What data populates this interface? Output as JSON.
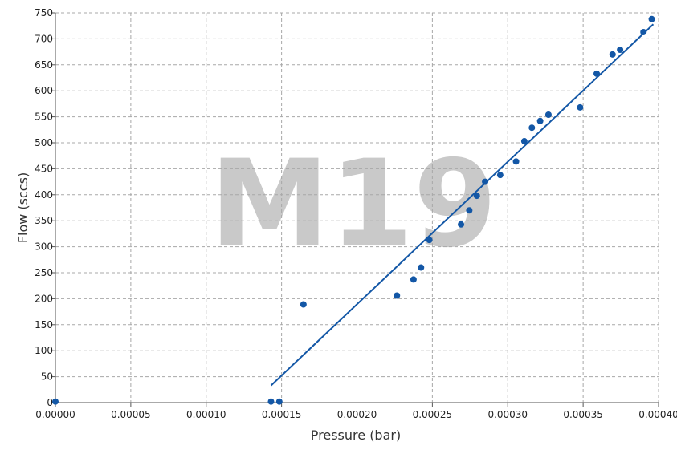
{
  "chart_data": {
    "type": "scatter",
    "xlabel": "Pressure (bar)",
    "ylabel": "Flow (sccs)",
    "xlim": [
      0,
      0.0004
    ],
    "ylim": [
      0,
      750
    ],
    "x_tick_labels": [
      "0.00000",
      "0.00005",
      "0.00010",
      "0.00015",
      "0.00020",
      "0.00025",
      "0.00030",
      "0.00035",
      "0.00040"
    ],
    "x_ticks": [
      0,
      5e-05,
      0.0001,
      0.00015,
      0.0002,
      0.00025,
      0.0003,
      0.00035,
      0.0004
    ],
    "y_ticks": [
      0,
      50,
      100,
      150,
      200,
      250,
      300,
      350,
      400,
      450,
      500,
      550,
      600,
      650,
      700,
      750
    ],
    "y_tick_labels": [
      "0",
      "50",
      "100",
      "150",
      "200",
      "250",
      "300",
      "350",
      "400",
      "450",
      "500",
      "550",
      "600",
      "650",
      "700",
      "750"
    ],
    "grid": true,
    "watermark": "M19",
    "colors": {
      "points": "#1357a6",
      "line": "#1357a6",
      "watermark": "#c9c9c9"
    },
    "points": [
      {
        "x": 0.0,
        "y": 2
      },
      {
        "x": 0.000143,
        "y": 2
      },
      {
        "x": 0.0001485,
        "y": 2
      },
      {
        "x": 0.0001645,
        "y": 189
      },
      {
        "x": 0.0002265,
        "y": 206
      },
      {
        "x": 0.0002375,
        "y": 237
      },
      {
        "x": 0.0002425,
        "y": 260
      },
      {
        "x": 0.000248,
        "y": 313
      },
      {
        "x": 0.000269,
        "y": 343
      },
      {
        "x": 0.0002745,
        "y": 370
      },
      {
        "x": 0.0002795,
        "y": 398
      },
      {
        "x": 0.000285,
        "y": 425
      },
      {
        "x": 0.000295,
        "y": 438
      },
      {
        "x": 0.0003055,
        "y": 464
      },
      {
        "x": 0.000311,
        "y": 503
      },
      {
        "x": 0.000316,
        "y": 529
      },
      {
        "x": 0.0003215,
        "y": 542
      },
      {
        "x": 0.000327,
        "y": 554
      },
      {
        "x": 0.000348,
        "y": 568
      },
      {
        "x": 0.000359,
        "y": 633
      },
      {
        "x": 0.0003695,
        "y": 670
      },
      {
        "x": 0.0003745,
        "y": 679
      },
      {
        "x": 0.00039,
        "y": 713
      },
      {
        "x": 0.0003955,
        "y": 738
      }
    ],
    "fit_line": {
      "x": [
        0.000143,
        0.0003965
      ],
      "y": [
        33,
        728
      ]
    }
  }
}
